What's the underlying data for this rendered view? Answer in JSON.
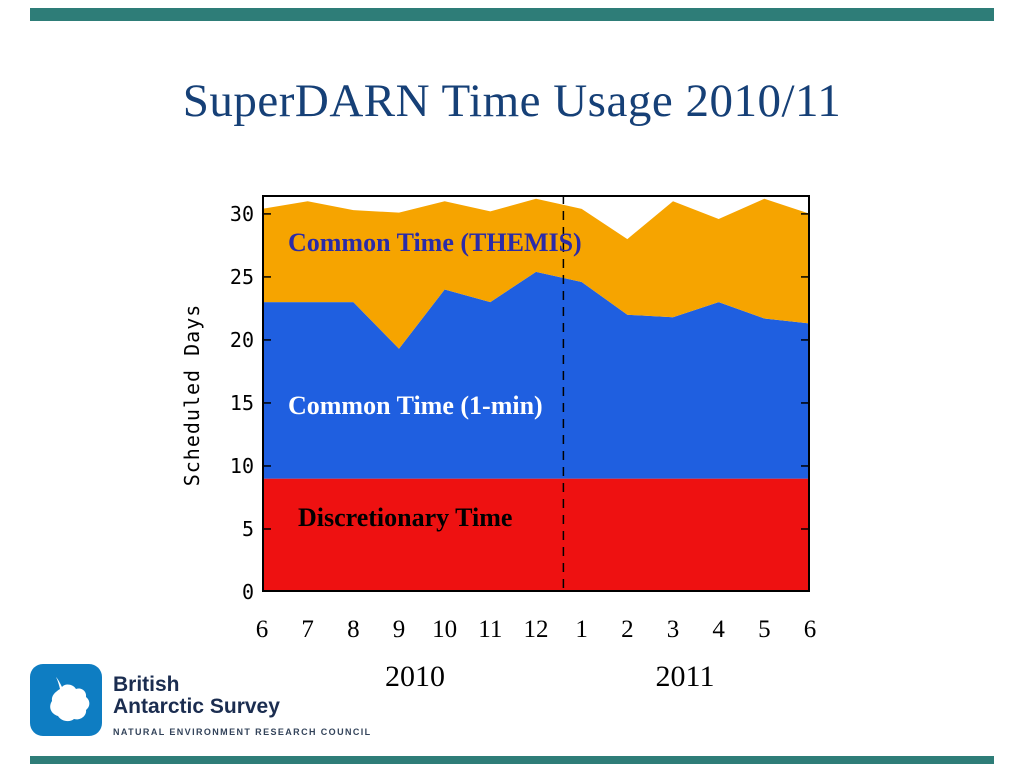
{
  "slide": {
    "title": "SuperDARN Time Usage 2010/11"
  },
  "theme": {
    "top_bar_color": "#2E7D78",
    "bottom_bar_color": "#2E7D78",
    "title_color": "#164077",
    "plot_frame_color": "#000000",
    "background": "#FFFFFF",
    "logo_blue": "#0E7DC2",
    "logo_text_color": "#1B2D50"
  },
  "chart_data": {
    "type": "area",
    "stacked": true,
    "title": "SuperDARN Time Usage 2010/11",
    "ylabel": "Scheduled Days",
    "xlabel": "",
    "ylim": [
      0,
      31.5
    ],
    "yticks": [
      0,
      5,
      10,
      15,
      20,
      25,
      30
    ],
    "grid": false,
    "legend_position": "in-plot-labels",
    "categories": [
      "6",
      "7",
      "8",
      "9",
      "10",
      "11",
      "12",
      "1",
      "2",
      "3",
      "4",
      "5",
      "6"
    ],
    "x_year_labels": [
      {
        "label": "2010"
      },
      {
        "label": "2011"
      }
    ],
    "year_divider_index": 6.6,
    "series": [
      {
        "name": "Discretionary Time",
        "color": "#EE1111",
        "label_color": "#000000",
        "values": [
          9,
          9,
          9,
          9,
          9,
          9,
          9,
          9,
          9,
          9,
          9,
          9,
          9
        ]
      },
      {
        "name": "Common Time (1-min)",
        "color": "#1F5FE0",
        "label_color": "#FFFFFF",
        "values": [
          14,
          14,
          14,
          10.3,
          15,
          14,
          16.4,
          15.6,
          13,
          12.8,
          14,
          12.7,
          12.3
        ]
      },
      {
        "name": "Common Time (THEMIS)",
        "color": "#F6A400",
        "label_color": "#2B2BA8",
        "values": [
          7.4,
          8,
          7.3,
          10.8,
          7,
          7.2,
          5.8,
          5.8,
          6,
          9.2,
          6.6,
          9.5,
          8.7
        ]
      }
    ]
  },
  "logo": {
    "line1": "British",
    "line2": "Antarctic Survey",
    "line3": "NATURAL ENVIRONMENT RESEARCH COUNCIL"
  }
}
